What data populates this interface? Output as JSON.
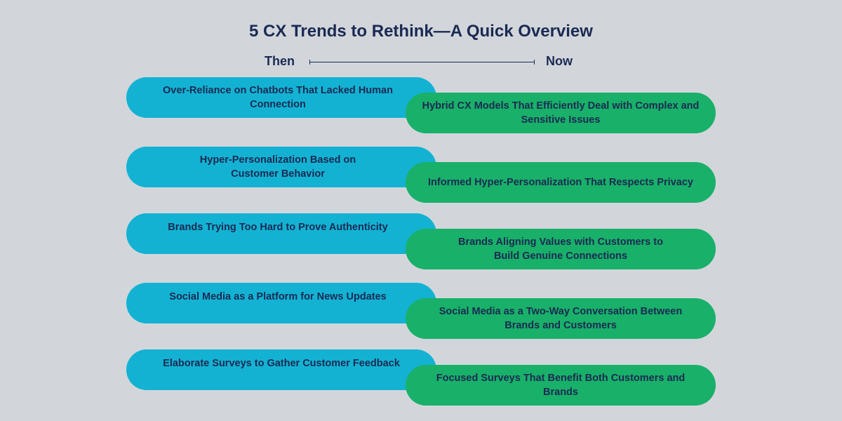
{
  "title": "5 CX Trends to Rethink—A Quick Overview",
  "labels": {
    "then": "Then",
    "now": "Now"
  },
  "colors": {
    "background": "#d2d6db",
    "then_pill": "#13b2d3",
    "now_pill": "#19b069",
    "text": "#1a2a52"
  },
  "trends": [
    {
      "then": "Over-Reliance on Chatbots That Lacked Human Connection",
      "now": "Hybrid CX Models That Efficiently Deal with Complex and Sensitive Issues"
    },
    {
      "then": "Hyper-Personalization Based on Customer Behavior",
      "now": "Informed Hyper-Personalization That Respects Privacy"
    },
    {
      "then": "Brands Trying Too Hard to Prove Authenticity",
      "now": "Brands Aligning Values with Customers to Build Genuine Connections"
    },
    {
      "then": "Social Media as a Platform for News Updates",
      "now": "Social Media as a Two-Way Conversation Between Brands and Customers"
    },
    {
      "then": "Elaborate Surveys to Gather Customer Feedback",
      "now": "Focused Surveys That Benefit Both Customers and Brands"
    }
  ]
}
